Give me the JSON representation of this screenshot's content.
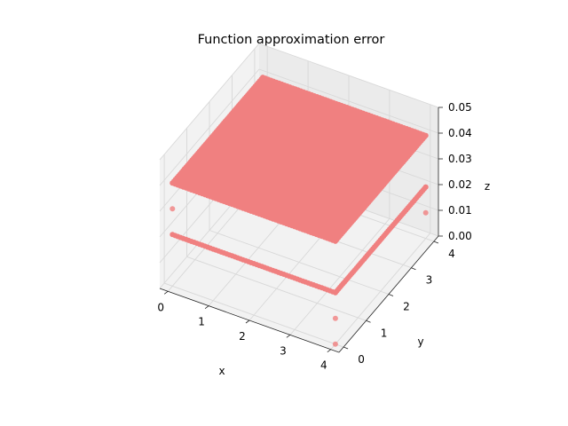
{
  "chart_data": {
    "type": "scatter",
    "projection": "3d",
    "title": "Function approximation error",
    "xlabel": "x",
    "ylabel": "y",
    "zlabel": "z",
    "xlim": [
      -0.2,
      4.2
    ],
    "ylim": [
      -0.2,
      4.2
    ],
    "zlim": [
      0.0,
      0.05
    ],
    "xticks": [
      "0",
      "1",
      "2",
      "3",
      "4"
    ],
    "yticks": [
      "0",
      "1",
      "2",
      "3",
      "4"
    ],
    "zticks": [
      "0.00",
      "0.01",
      "0.02",
      "0.03",
      "0.04",
      "0.05"
    ],
    "grid": true,
    "marker_color": "#f08080",
    "series": [
      {
        "description": "dense grid of points over the domain",
        "x_range": [
          0.05,
          3.95
        ],
        "y_range": [
          0.05,
          3.95
        ],
        "z": 0.04
      },
      {
        "description": "edge rows",
        "lines": [
          {
            "x": [
              0.0,
              4.0
            ],
            "y": 0.0,
            "z": 0.04
          },
          {
            "x": [
              0.0,
              4.0
            ],
            "y": 0.0,
            "z": 0.02
          },
          {
            "x": 4.0,
            "y": [
              0.0,
              4.0
            ],
            "z": 0.04
          },
          {
            "x": 4.0,
            "y": [
              0.0,
              4.0
            ],
            "z": 0.02
          },
          {
            "x": 0.0,
            "y": [
              0.0,
              4.0
            ],
            "z": 0.04
          },
          {
            "x": [
              0.0,
              4.0
            ],
            "y": 4.0,
            "z": 0.04
          }
        ]
      },
      {
        "description": "corner outliers",
        "points": [
          {
            "x": 0.0,
            "y": 0.0,
            "z": 0.03
          },
          {
            "x": 4.0,
            "y": 0.0,
            "z": 0.01
          },
          {
            "x": 4.0,
            "y": 0.0,
            "z": 0.0
          },
          {
            "x": 4.0,
            "y": 4.0,
            "z": 0.02
          },
          {
            "x": 4.0,
            "y": 4.0,
            "z": 0.01
          },
          {
            "x": 4.0,
            "y": 2.0,
            "z": 0.05
          }
        ]
      }
    ]
  }
}
